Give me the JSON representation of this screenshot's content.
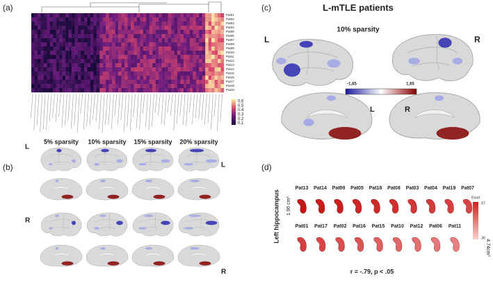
{
  "panels": {
    "a": {
      "label": "(a)",
      "patients": [
        "Pat01",
        "Pat02",
        "Pat03",
        "Pat04",
        "Pat05",
        "Pat06",
        "Pat07",
        "Pat08",
        "Pat09",
        "Pat10",
        "Pat11",
        "Pat12",
        "Pat13",
        "Pat14",
        "Pat15",
        "Pat16",
        "Pat17",
        "Pat18",
        "Pat19"
      ],
      "colorbar_ticks": [
        "0.6",
        "0.5",
        "0.4",
        "0.3",
        "0.2",
        "0.1"
      ]
    },
    "b": {
      "label": "(b)",
      "sparsities": [
        "5% sparsity",
        "10% sparsity",
        "15% sparsity",
        "20% sparsity"
      ],
      "left_labels": [
        "L",
        "R"
      ],
      "right_labels": [
        "L",
        "R"
      ]
    },
    "c": {
      "label": "(c)",
      "title": "L-mTLE patients",
      "subtitle": "10% sparsity",
      "lateral_labels": [
        "L",
        "R"
      ],
      "medial_labels": [
        "L",
        "R"
      ],
      "colorbar_min": "-1,65",
      "colorbar_max": "1,65"
    },
    "d": {
      "label": "(d)",
      "ylabel": "Left hippocampus",
      "row1": [
        "Pat13",
        "Pat14",
        "Pat09",
        "Pat05",
        "Pat18",
        "Pat08",
        "Pat03",
        "Pat04",
        "Pat19",
        "Pat07"
      ],
      "row2": [
        "Pat01",
        "Pat17",
        "Pat02",
        "Pat16",
        "Pat15",
        "Pat10",
        "Pat12",
        "Pat06",
        "Pat11"
      ],
      "volume_top": "1.96 cm³",
      "volume_bottom": "4.74cm³",
      "legend_title": "Enod",
      "legend_max": ".57",
      "legend_min": ".36",
      "stat": "r = -.79, p < .05"
    }
  }
}
